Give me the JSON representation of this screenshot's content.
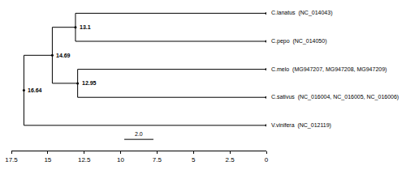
{
  "chart_data": {
    "type": "tree",
    "color": "#000000",
    "data_labels": true,
    "xlim": [
      17.5,
      0
    ],
    "xticks": [
      17.5,
      15,
      12.5,
      10,
      7.5,
      5,
      2.5,
      0
    ],
    "scale_bar": {
      "length": 2,
      "label": "2.0"
    },
    "tree": {
      "age": 16.64,
      "children": [
        {
          "age": 14.69,
          "children": [
            {
              "age": 13.1,
              "children": [
                {
                  "age": 0,
                  "name": "C.lanatus  (NC_014043)"
                },
                {
                  "age": 0,
                  "name": "C.pepo  (NC_014050)"
                }
              ]
            },
            {
              "age": 12.95,
              "children": [
                {
                  "age": 0,
                  "name": "C.melo  (MG947207, MG947208, MG947209)"
                },
                {
                  "age": 0,
                  "name": "C.sativus  (NC_016004, NC_016005, NC_016006)"
                }
              ]
            }
          ]
        },
        {
          "age": 0,
          "name": "V.vinifera  (NC_012119)"
        }
      ]
    }
  }
}
